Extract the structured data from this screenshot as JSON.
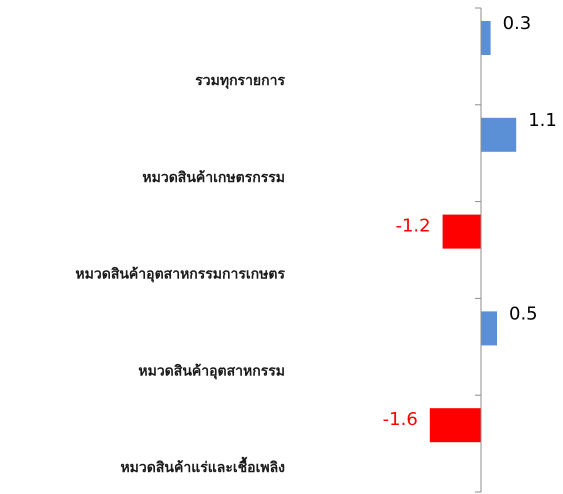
{
  "chart_data": {
    "type": "bar",
    "orientation": "horizontal",
    "categories": [
      "รวมทุกรายการ",
      "หมวดสินค้าเกษตรกรรม",
      "หมวดสินค้าอุตสาหกรรมการเกษตร",
      "หมวดสินค้าอุตสาหกรรม",
      "หมวดสินค้าแร่และเชื้อเพลิง"
    ],
    "values": [
      0.3,
      1.1,
      -1.2,
      0.5,
      -1.6
    ],
    "value_labels": [
      "0.3",
      "1.1",
      "-1.2",
      "0.5",
      "-1.6"
    ],
    "xlim": [
      -1.8,
      2.0
    ],
    "grid": false,
    "legend": "none",
    "colors": {
      "positive": "#5b8fd6",
      "negative": "#ff0000",
      "axis": "#8c8c8c",
      "positive_label": "#000000",
      "negative_label": "#ff0000"
    }
  }
}
